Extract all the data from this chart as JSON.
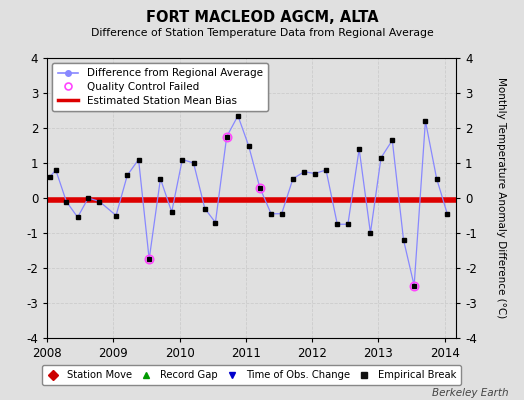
{
  "title": "FORT MACLEOD AGCM, ALTA",
  "subtitle": "Difference of Station Temperature Data from Regional Average",
  "ylabel_right": "Monthly Temperature Anomaly Difference (°C)",
  "credit": "Berkeley Earth",
  "xlim": [
    2008.0,
    2014.17
  ],
  "ylim": [
    -4,
    4
  ],
  "bias_start": 2008.0,
  "bias_end": 2014.17,
  "bias_value": -0.05,
  "line_color": "#8888ff",
  "marker_color": "#000000",
  "bias_color": "#dd0000",
  "background_color": "#e0e0e0",
  "qc_failed_color": "#ff44ff",
  "times": [
    2008.04,
    2008.13,
    2008.29,
    2008.46,
    2008.62,
    2008.79,
    2009.04,
    2009.21,
    2009.38,
    2009.54,
    2009.71,
    2009.88,
    2010.04,
    2010.21,
    2010.38,
    2010.54,
    2010.71,
    2010.88,
    2011.04,
    2011.21,
    2011.38,
    2011.54,
    2011.71,
    2011.88,
    2012.04,
    2012.21,
    2012.38,
    2012.54,
    2012.71,
    2012.88,
    2013.04,
    2013.21,
    2013.38,
    2013.54,
    2013.71,
    2013.88,
    2014.04
  ],
  "values": [
    0.6,
    0.8,
    -0.1,
    -0.55,
    0.0,
    -0.1,
    -0.5,
    0.65,
    1.1,
    -1.75,
    0.55,
    -0.4,
    1.1,
    1.0,
    -0.3,
    -0.7,
    1.75,
    2.35,
    1.5,
    0.3,
    -0.45,
    -0.45,
    0.55,
    0.75,
    0.7,
    0.8,
    -0.75,
    -0.75,
    1.4,
    -1.0,
    1.15,
    1.65,
    -1.2,
    -2.5,
    2.2,
    0.55,
    -0.45
  ],
  "qc_failed_indices": [
    9,
    16,
    19,
    33
  ],
  "xticks": [
    2008,
    2009,
    2010,
    2011,
    2012,
    2013,
    2014
  ],
  "yticks": [
    -4,
    -3,
    -2,
    -1,
    0,
    1,
    2,
    3,
    4
  ],
  "grid_color": "#cccccc"
}
